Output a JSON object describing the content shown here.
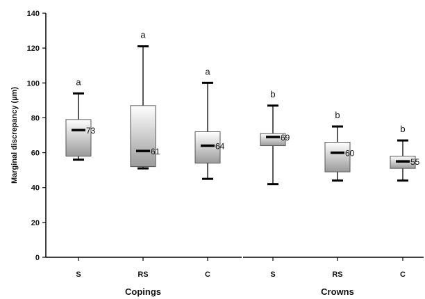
{
  "chart_data": {
    "type": "box",
    "ylabel": "Marginal discrepancy (µm)",
    "ylim": [
      0,
      140
    ],
    "yticks": [
      "0",
      "20",
      "40",
      "60",
      "80",
      "100",
      "120",
      "140"
    ],
    "groups": [
      {
        "label": "Copings",
        "categories": [
          "S",
          "RS",
          "C"
        ]
      },
      {
        "label": "Crowns",
        "categories": [
          "S",
          "RS",
          "C"
        ]
      }
    ],
    "boxes": [
      {
        "group": "Copings",
        "category": "S",
        "min": 56,
        "q1": 58,
        "median": 73,
        "q3": 79,
        "max": 94,
        "median_label": "73",
        "significance": "a"
      },
      {
        "group": "Copings",
        "category": "RS",
        "min": 51,
        "q1": 52,
        "median": 61,
        "q3": 87,
        "max": 121,
        "median_label": "61",
        "significance": "a"
      },
      {
        "group": "Copings",
        "category": "C",
        "min": 45,
        "q1": 54,
        "median": 64,
        "q3": 72,
        "max": 100,
        "median_label": "64",
        "significance": "a"
      },
      {
        "group": "Crowns",
        "category": "S",
        "min": 42,
        "q1": 64,
        "median": 69,
        "q3": 71,
        "max": 87,
        "median_label": "69",
        "significance": "b"
      },
      {
        "group": "Crowns",
        "category": "RS",
        "min": 44,
        "q1": 49,
        "median": 60,
        "q3": 66,
        "max": 75,
        "median_label": "60",
        "significance": "b"
      },
      {
        "group": "Crowns",
        "category": "C",
        "min": 44,
        "q1": 51,
        "median": 55,
        "q3": 58,
        "max": 67,
        "median_label": "55",
        "significance": "b"
      }
    ],
    "grid": false,
    "colors": {
      "box_top": "#ffffff",
      "box_bottom": "#9a9a9a",
      "line": "#000000",
      "box_edge": "#555555"
    }
  }
}
